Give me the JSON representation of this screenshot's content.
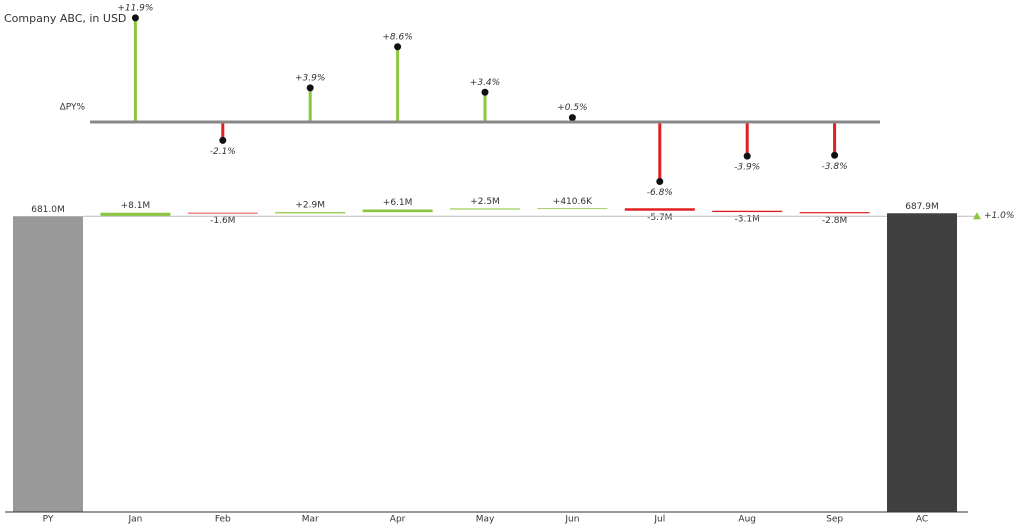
{
  "title": "Company ABC, in USD",
  "chart_data": [
    {
      "type": "lollipop",
      "label": "ΔPY%",
      "categories": [
        "Jan",
        "Feb",
        "Mar",
        "Apr",
        "May",
        "Jun",
        "Jul",
        "Aug",
        "Sep"
      ],
      "values": [
        11.9,
        -2.1,
        3.9,
        8.6,
        3.4,
        0.5,
        -6.8,
        -3.9,
        -3.8
      ],
      "value_labels": [
        "+11.9%",
        "-2.1%",
        "+3.9%",
        "+8.6%",
        "+3.4%",
        "+0.5%",
        "-6.8%",
        "-3.9%",
        "-3.8%"
      ],
      "ylim": [
        -8,
        12
      ],
      "positive_color": "#8cc63f",
      "negative_color": "#e02020"
    },
    {
      "type": "waterfall",
      "categories": [
        "PY",
        "Jan",
        "Feb",
        "Mar",
        "Apr",
        "May",
        "Jun",
        "Jul",
        "Aug",
        "Sep",
        "AC"
      ],
      "measure": [
        "total",
        "relative",
        "relative",
        "relative",
        "relative",
        "relative",
        "relative",
        "relative",
        "relative",
        "relative",
        "total"
      ],
      "values": [
        681.0,
        8.1,
        -1.6,
        2.9,
        6.1,
        2.5,
        0.4106,
        -5.7,
        -3.1,
        -2.8,
        687.9
      ],
      "value_labels": [
        "681.0M",
        "+8.1M",
        "-1.6M",
        "+2.9M",
        "+6.1M",
        "+2.5M",
        "+410.6K",
        "-5.7M",
        "-3.1M",
        "-2.8M",
        "687.9M"
      ],
      "ylim": [
        0,
        700
      ],
      "total_colors": [
        "#999999",
        "#404040"
      ],
      "positive_color": "#8cc63f",
      "negative_color": "#e02020",
      "total_change": {
        "value": 1.0,
        "label": "+1.0%"
      }
    }
  ]
}
